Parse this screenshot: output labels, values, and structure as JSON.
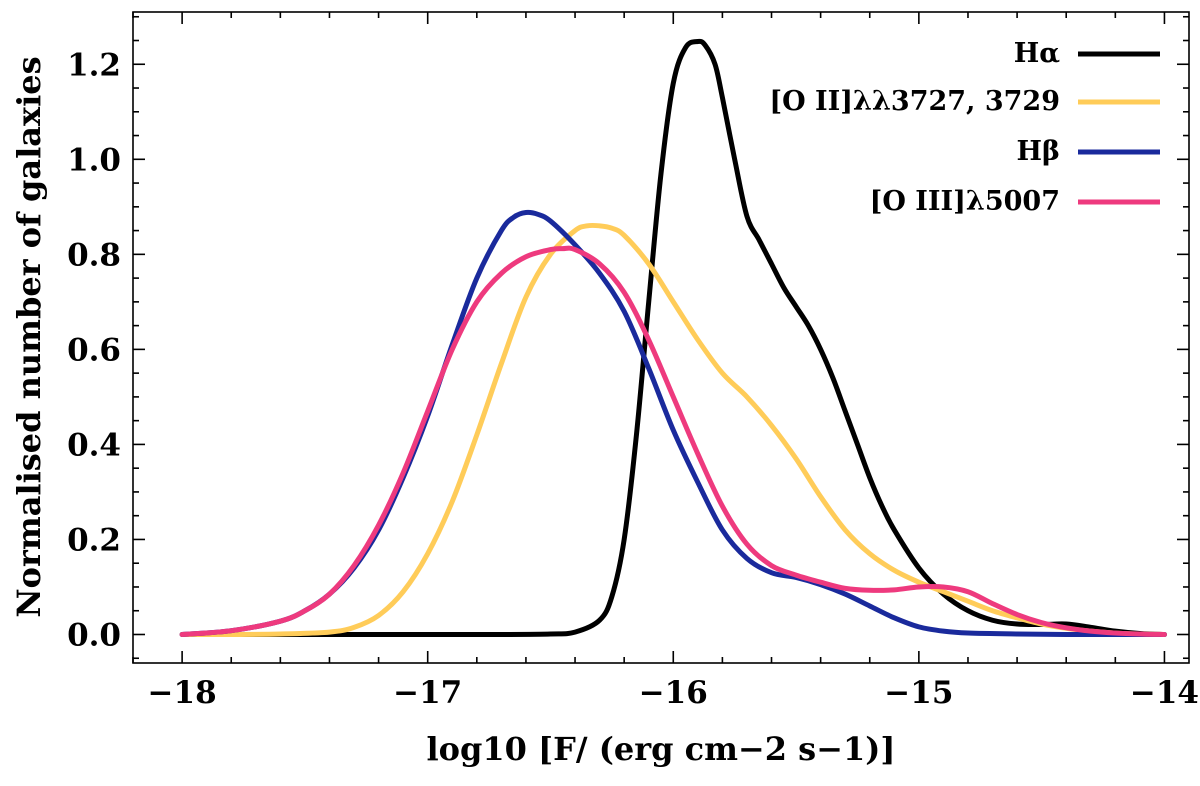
{
  "chart_data": {
    "type": "line",
    "title": "",
    "xlabel": "log10 [F/ (erg cm−2 s−1)]",
    "ylabel": "Normalised number of galaxies",
    "xlim": [
      -18.2,
      -13.9
    ],
    "ylim": [
      -0.06,
      1.31
    ],
    "xticks": [
      -18,
      -17,
      -16,
      -15,
      -14
    ],
    "xtick_labels": [
      "−18",
      "−17",
      "−16",
      "−15",
      "−14"
    ],
    "yticks": [
      0.0,
      0.2,
      0.4,
      0.6,
      0.8,
      1.0,
      1.2
    ],
    "ytick_labels": [
      "0.0",
      "0.2",
      "0.4",
      "0.6",
      "0.8",
      "1.0",
      "1.2"
    ],
    "grid": false,
    "legend_position": "top-right",
    "series": [
      {
        "name": "Hα",
        "color": "#000000",
        "x": [
          -18.0,
          -17.5,
          -17.0,
          -16.7,
          -16.5,
          -16.4,
          -16.3,
          -16.25,
          -16.2,
          -16.15,
          -16.1,
          -16.05,
          -16.0,
          -15.95,
          -15.9,
          -15.87,
          -15.83,
          -15.8,
          -15.75,
          -15.7,
          -15.65,
          -15.6,
          -15.55,
          -15.5,
          -15.45,
          -15.4,
          -15.35,
          -15.3,
          -15.25,
          -15.2,
          -15.15,
          -15.1,
          -15.0,
          -14.9,
          -14.8,
          -14.7,
          -14.6,
          -14.5,
          -14.4,
          -14.3,
          -14.2,
          -14.1,
          -14.0
        ],
        "y": [
          0.0,
          0.0,
          0.0,
          0.0,
          0.001,
          0.005,
          0.03,
          0.08,
          0.2,
          0.42,
          0.7,
          0.97,
          1.16,
          1.235,
          1.248,
          1.24,
          1.2,
          1.13,
          1.0,
          0.88,
          0.83,
          0.78,
          0.73,
          0.69,
          0.65,
          0.6,
          0.54,
          0.47,
          0.4,
          0.33,
          0.27,
          0.22,
          0.14,
          0.085,
          0.05,
          0.03,
          0.022,
          0.021,
          0.022,
          0.015,
          0.007,
          0.002,
          0.0
        ]
      },
      {
        "name": "[O II]λλ3727, 3729",
        "color": "#ffcc59",
        "x": [
          -18.0,
          -17.8,
          -17.6,
          -17.4,
          -17.3,
          -17.2,
          -17.1,
          -17.0,
          -16.9,
          -16.8,
          -16.7,
          -16.6,
          -16.5,
          -16.4,
          -16.35,
          -16.3,
          -16.25,
          -16.2,
          -16.1,
          -16.0,
          -15.9,
          -15.8,
          -15.7,
          -15.6,
          -15.5,
          -15.4,
          -15.3,
          -15.2,
          -15.1,
          -15.0,
          -14.9,
          -14.8,
          -14.7,
          -14.6,
          -14.5,
          -14.4,
          -14.3,
          -14.2,
          -14.1,
          -14.0
        ],
        "y": [
          0.0,
          0.0,
          0.001,
          0.005,
          0.015,
          0.04,
          0.09,
          0.17,
          0.28,
          0.42,
          0.57,
          0.71,
          0.8,
          0.85,
          0.86,
          0.86,
          0.855,
          0.84,
          0.78,
          0.7,
          0.62,
          0.55,
          0.5,
          0.44,
          0.37,
          0.29,
          0.22,
          0.17,
          0.135,
          0.11,
          0.09,
          0.07,
          0.05,
          0.035,
          0.022,
          0.013,
          0.007,
          0.003,
          0.001,
          0.0
        ]
      },
      {
        "name": "Hβ",
        "color": "#1a2a9c",
        "x": [
          -18.0,
          -17.8,
          -17.6,
          -17.5,
          -17.4,
          -17.3,
          -17.2,
          -17.1,
          -17.0,
          -16.9,
          -16.8,
          -16.7,
          -16.65,
          -16.6,
          -16.55,
          -16.5,
          -16.4,
          -16.3,
          -16.2,
          -16.1,
          -16.0,
          -15.9,
          -15.8,
          -15.7,
          -15.6,
          -15.5,
          -15.4,
          -15.3,
          -15.2,
          -15.1,
          -15.0,
          -14.9,
          -14.8,
          -14.6,
          -14.4,
          -14.2,
          -14.0
        ],
        "y": [
          0.0,
          0.008,
          0.028,
          0.05,
          0.085,
          0.14,
          0.22,
          0.33,
          0.46,
          0.61,
          0.75,
          0.85,
          0.878,
          0.888,
          0.884,
          0.87,
          0.82,
          0.76,
          0.68,
          0.56,
          0.43,
          0.32,
          0.22,
          0.16,
          0.13,
          0.12,
          0.105,
          0.085,
          0.06,
          0.035,
          0.016,
          0.007,
          0.003,
          0.001,
          0.0,
          0.0,
          0.0
        ]
      },
      {
        "name": "[O III]λ5007",
        "color": "#ee3a7e",
        "x": [
          -18.0,
          -17.8,
          -17.6,
          -17.5,
          -17.4,
          -17.3,
          -17.2,
          -17.1,
          -17.0,
          -16.9,
          -16.8,
          -16.7,
          -16.6,
          -16.5,
          -16.45,
          -16.4,
          -16.3,
          -16.2,
          -16.1,
          -16.0,
          -15.9,
          -15.8,
          -15.7,
          -15.6,
          -15.5,
          -15.4,
          -15.3,
          -15.2,
          -15.1,
          -15.0,
          -14.9,
          -14.8,
          -14.7,
          -14.6,
          -14.5,
          -14.4,
          -14.3,
          -14.2,
          -14.1,
          -14.0
        ],
        "y": [
          0.0,
          0.008,
          0.028,
          0.05,
          0.085,
          0.145,
          0.23,
          0.34,
          0.47,
          0.6,
          0.7,
          0.76,
          0.795,
          0.81,
          0.812,
          0.81,
          0.78,
          0.72,
          0.62,
          0.5,
          0.38,
          0.27,
          0.19,
          0.145,
          0.125,
          0.11,
          0.097,
          0.093,
          0.094,
          0.1,
          0.1,
          0.09,
          0.065,
          0.042,
          0.025,
          0.014,
          0.007,
          0.003,
          0.001,
          0.0
        ]
      }
    ]
  }
}
